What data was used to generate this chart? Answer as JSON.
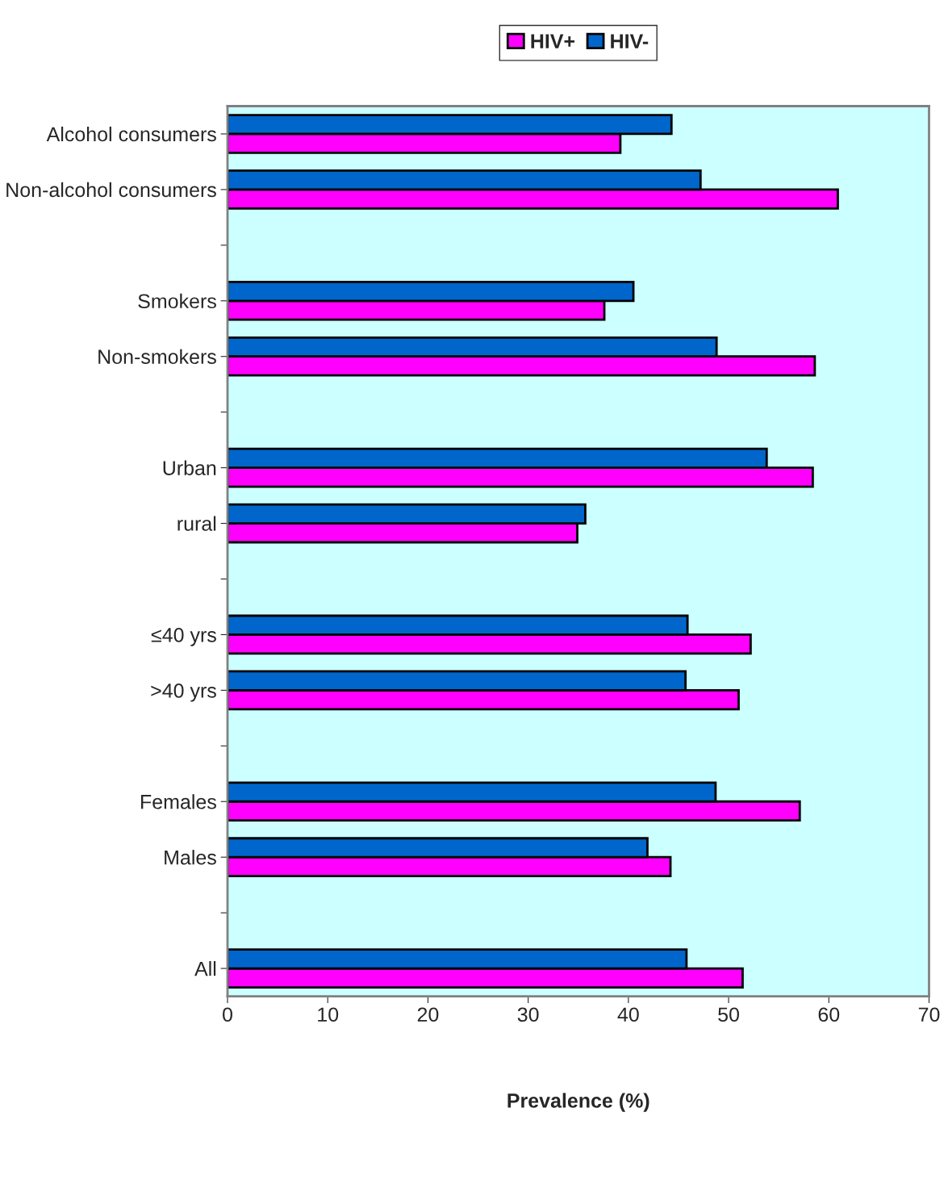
{
  "chart_data": {
    "type": "bar",
    "orientation": "horizontal",
    "xlabel": "Prevalence (%)",
    "categories": [
      "Alcohol consumers",
      "Non-alcohol consumers",
      null,
      "Smokers",
      "Non-smokers",
      null,
      "Urban",
      "rural",
      null,
      "≤40 yrs",
      ">40 yrs",
      null,
      "Females",
      "Males",
      null,
      "All"
    ],
    "series": [
      {
        "name": "HIV+",
        "color": "#ff00ff",
        "values": [
          39.2,
          60.9,
          null,
          37.6,
          58.6,
          null,
          58.4,
          34.9,
          null,
          52.2,
          51.0,
          null,
          57.1,
          44.2,
          null,
          51.4
        ]
      },
      {
        "name": "HIV-",
        "color": "#0066cc",
        "values": [
          44.3,
          47.2,
          null,
          40.5,
          48.8,
          null,
          53.8,
          35.7,
          null,
          45.9,
          45.7,
          null,
          48.7,
          41.9,
          null,
          45.8
        ]
      }
    ],
    "xlim": [
      0,
      70
    ],
    "xticks": [
      0,
      10,
      20,
      30,
      40,
      50,
      60,
      70
    ],
    "grid": false,
    "legend": "top"
  }
}
